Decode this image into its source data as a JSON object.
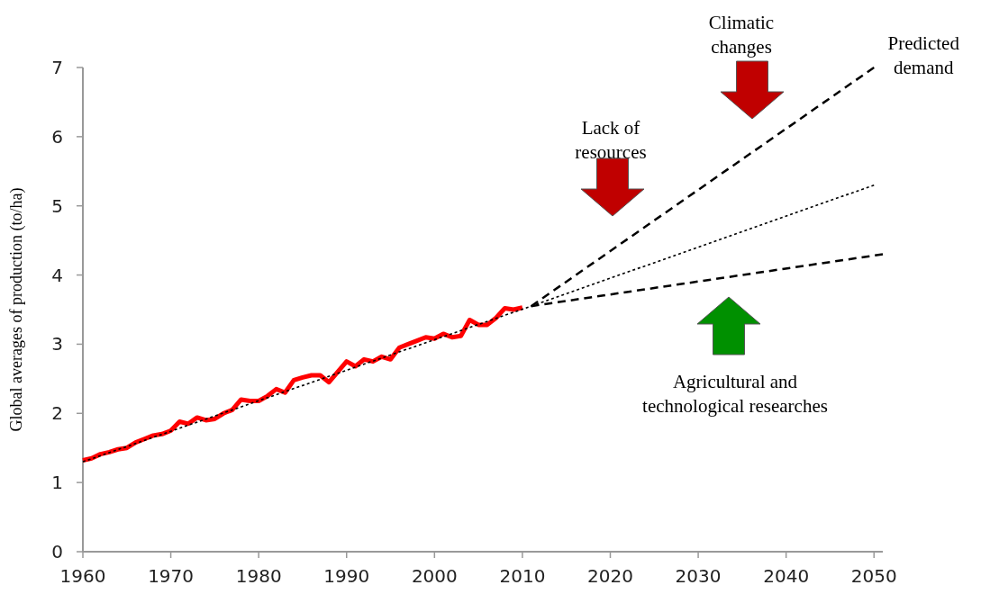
{
  "chart_data": {
    "type": "line",
    "ylabel": "Global averages of production (to/ha)",
    "xlim": [
      1960,
      2051
    ],
    "ylim": [
      0,
      7
    ],
    "xticks": [
      1960,
      1970,
      1980,
      1990,
      2000,
      2010,
      2020,
      2030,
      2040,
      2050
    ],
    "yticks": [
      0,
      1,
      2,
      3,
      4,
      5,
      6,
      7
    ],
    "grid": false,
    "marker": "none",
    "series": [
      {
        "color": "#ff0000",
        "line_style": "solid",
        "x": [
          1960,
          1961,
          1962,
          1963,
          1964,
          1965,
          1966,
          1967,
          1968,
          1969,
          1970,
          1971,
          1972,
          1973,
          1974,
          1975,
          1976,
          1977,
          1978,
          1979,
          1980,
          1981,
          1982,
          1983,
          1984,
          1985,
          1986,
          1987,
          1988,
          1989,
          1990,
          1991,
          1992,
          1993,
          1994,
          1995,
          1996,
          1997,
          1998,
          1999,
          2000,
          2001,
          2002,
          2003,
          2004,
          2005,
          2006,
          2007,
          2008,
          2009,
          2010
        ],
        "values": [
          1.32,
          1.35,
          1.41,
          1.44,
          1.48,
          1.5,
          1.58,
          1.63,
          1.68,
          1.7,
          1.75,
          1.88,
          1.85,
          1.94,
          1.9,
          1.92,
          2.0,
          2.05,
          2.2,
          2.18,
          2.18,
          2.25,
          2.35,
          2.3,
          2.48,
          2.52,
          2.55,
          2.55,
          2.45,
          2.6,
          2.75,
          2.68,
          2.78,
          2.75,
          2.82,
          2.78,
          2.95,
          3.0,
          3.05,
          3.1,
          3.08,
          3.15,
          3.1,
          3.12,
          3.35,
          3.28,
          3.28,
          3.38,
          3.52,
          3.5,
          3.53
        ]
      },
      {
        "color": "#000000",
        "line_style": "dotted",
        "x": [
          1960,
          2011,
          2050
        ],
        "values": [
          1.3,
          3.55,
          5.3
        ]
      },
      {
        "color": "#000000",
        "line_style": "dashed",
        "x": [
          2011,
          2050
        ],
        "values": [
          3.55,
          7.0
        ]
      },
      {
        "color": "#000000",
        "line_style": "dashed",
        "x": [
          2011,
          2051
        ],
        "values": [
          3.55,
          4.3
        ]
      }
    ],
    "annotations": [
      {
        "text": "Predicted demand",
        "x": 2050,
        "y": 7.0
      },
      "Climatic changes",
      "Lack of resources",
      "Agricultural and technological researches"
    ]
  }
}
